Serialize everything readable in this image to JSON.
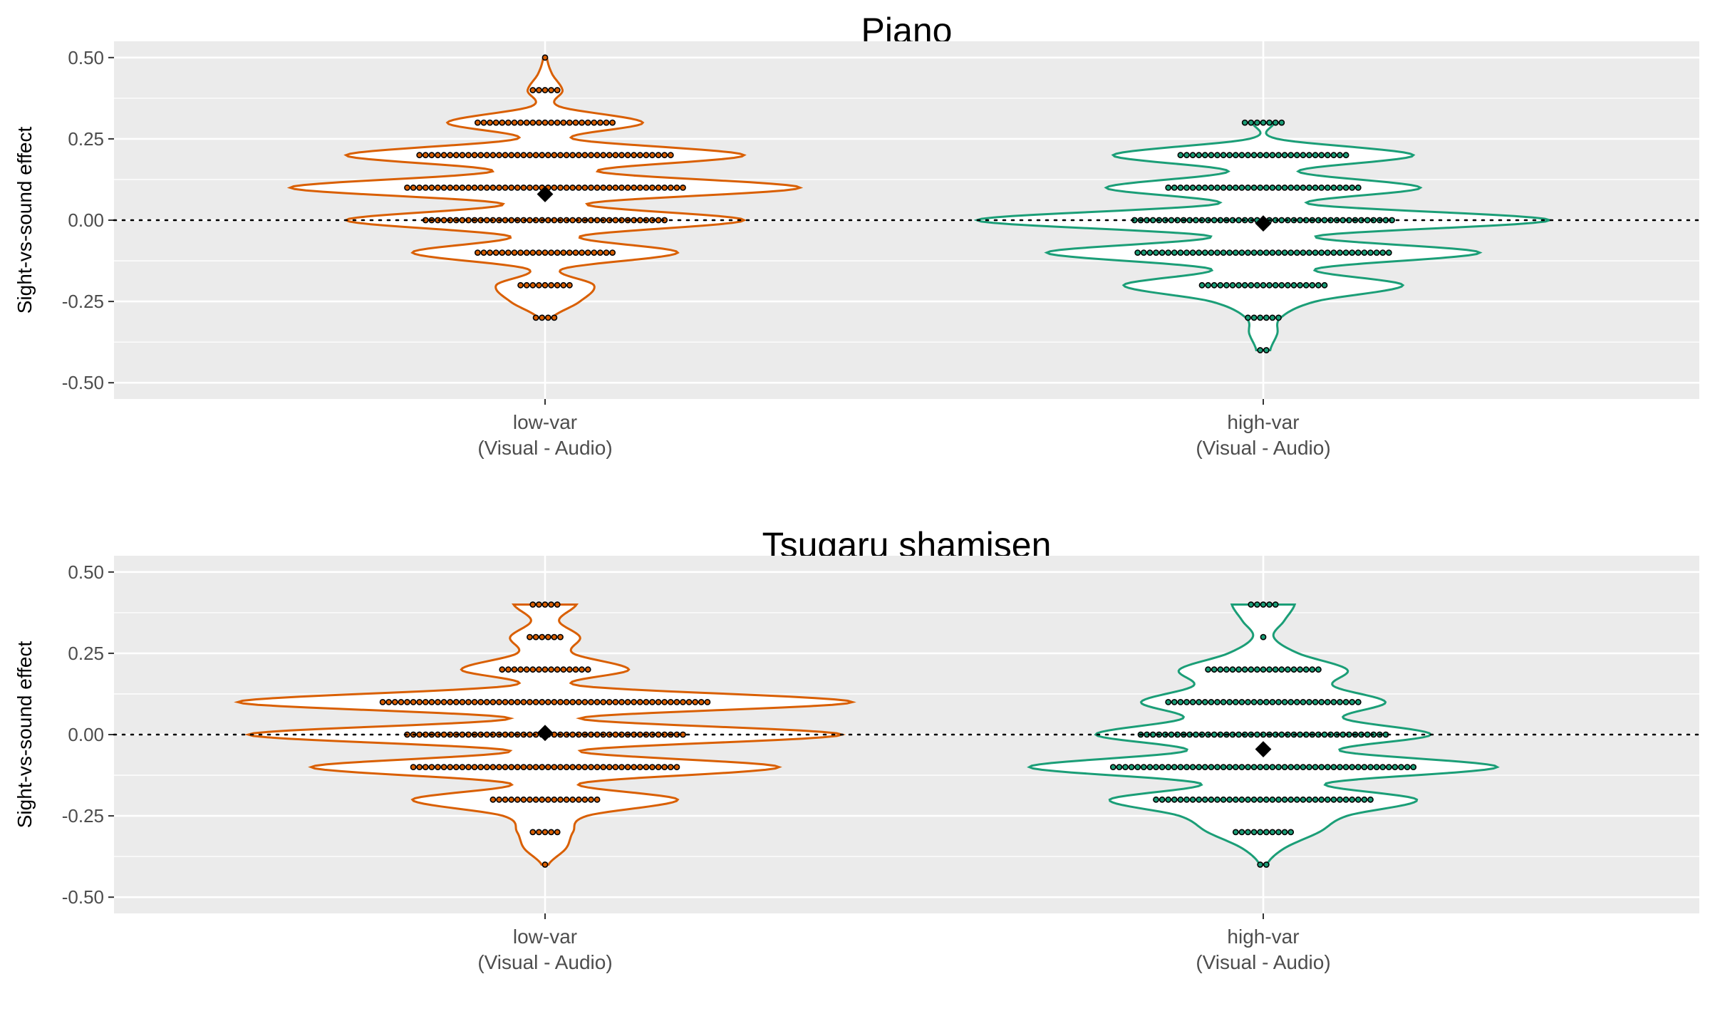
{
  "chart_data": [
    {
      "type": "violin",
      "title": "Piano",
      "ylabel": "Sight-vs-sound effect",
      "ylim": [
        -0.55,
        0.55
      ],
      "yticks": [
        "0.50",
        "0.25",
        "0.00",
        "-0.25",
        "-0.50"
      ],
      "ytick_values": [
        0.5,
        0.25,
        0.0,
        -0.25,
        -0.5
      ],
      "reference_line": 0.0,
      "categories": [
        {
          "label_line1": "low-var",
          "label_line2": "(Visual - Audio)"
        },
        {
          "label_line1": "high-var",
          "label_line2": "(Visual - Audio)"
        }
      ],
      "groups": [
        {
          "color": "#D95F02",
          "mean": 0.08,
          "range": [
            -0.3,
            0.5
          ],
          "density": [
            [
              -0.3,
              0.02
            ],
            [
              -0.25,
              0.1
            ],
            [
              -0.2,
              0.14
            ],
            [
              -0.15,
              0.05
            ],
            [
              -0.1,
              0.38
            ],
            [
              -0.05,
              0.1
            ],
            [
              0.0,
              0.57
            ],
            [
              0.05,
              0.12
            ],
            [
              0.1,
              0.73
            ],
            [
              0.15,
              0.15
            ],
            [
              0.2,
              0.57
            ],
            [
              0.25,
              0.08
            ],
            [
              0.3,
              0.28
            ],
            [
              0.35,
              0.04
            ],
            [
              0.4,
              0.05
            ],
            [
              0.45,
              0.02
            ],
            [
              0.5,
              0.005
            ]
          ],
          "dot_counts": [
            [
              -0.3,
              4
            ],
            [
              -0.2,
              9
            ],
            [
              -0.1,
              23
            ],
            [
              0.0,
              40
            ],
            [
              0.1,
              46
            ],
            [
              0.2,
              42
            ],
            [
              0.3,
              23
            ],
            [
              0.4,
              5
            ],
            [
              0.5,
              1
            ]
          ]
        },
        {
          "color": "#1B9E77",
          "mean": -0.01,
          "range": [
            -0.4,
            0.3
          ],
          "density": [
            [
              -0.4,
              0.02
            ],
            [
              -0.35,
              0.04
            ],
            [
              -0.3,
              0.05
            ],
            [
              -0.25,
              0.15
            ],
            [
              -0.2,
              0.4
            ],
            [
              -0.15,
              0.15
            ],
            [
              -0.1,
              0.62
            ],
            [
              -0.05,
              0.15
            ],
            [
              0.0,
              0.82
            ],
            [
              0.05,
              0.13
            ],
            [
              0.1,
              0.45
            ],
            [
              0.15,
              0.1
            ],
            [
              0.2,
              0.43
            ],
            [
              0.25,
              0.04
            ],
            [
              0.3,
              0.03
            ]
          ],
          "dot_counts": [
            [
              -0.4,
              2
            ],
            [
              -0.3,
              6
            ],
            [
              -0.2,
              21
            ],
            [
              -0.1,
              42
            ],
            [
              0.0,
              43
            ],
            [
              0.1,
              32
            ],
            [
              0.2,
              28
            ],
            [
              0.3,
              7
            ]
          ]
        }
      ]
    },
    {
      "type": "violin",
      "title": "Tsugaru shamisen",
      "ylabel": "Sight-vs-sound effect",
      "ylim": [
        -0.55,
        0.55
      ],
      "yticks": [
        "0.50",
        "0.25",
        "0.00",
        "-0.25",
        "-0.50"
      ],
      "ytick_values": [
        0.5,
        0.25,
        0.0,
        -0.25,
        -0.5
      ],
      "reference_line": 0.0,
      "categories": [
        {
          "label_line1": "low-var",
          "label_line2": "(Visual - Audio)"
        },
        {
          "label_line1": "high-var",
          "label_line2": "(Visual - Audio)"
        }
      ],
      "groups": [
        {
          "color": "#D95F02",
          "mean": 0.005,
          "range": [
            -0.4,
            0.4
          ],
          "density": [
            [
              -0.4,
              0.01
            ],
            [
              -0.35,
              0.06
            ],
            [
              -0.3,
              0.08
            ],
            [
              -0.25,
              0.12
            ],
            [
              -0.2,
              0.38
            ],
            [
              -0.15,
              0.1
            ],
            [
              -0.1,
              0.67
            ],
            [
              -0.05,
              0.1
            ],
            [
              0.0,
              0.85
            ],
            [
              0.05,
              0.1
            ],
            [
              0.1,
              0.88
            ],
            [
              0.15,
              0.1
            ],
            [
              0.2,
              0.24
            ],
            [
              0.25,
              0.08
            ],
            [
              0.3,
              0.1
            ],
            [
              0.35,
              0.04
            ],
            [
              0.4,
              0.09
            ]
          ],
          "dot_counts": [
            [
              -0.4,
              1
            ],
            [
              -0.3,
              5
            ],
            [
              -0.2,
              18
            ],
            [
              -0.1,
              44
            ],
            [
              0.0,
              46
            ],
            [
              0.1,
              54
            ],
            [
              0.2,
              15
            ],
            [
              0.3,
              6
            ],
            [
              0.4,
              5
            ]
          ]
        },
        {
          "color": "#1B9E77",
          "mean": -0.045,
          "range": [
            -0.4,
            0.4
          ],
          "density": [
            [
              -0.4,
              0.01
            ],
            [
              -0.35,
              0.06
            ],
            [
              -0.3,
              0.16
            ],
            [
              -0.25,
              0.24
            ],
            [
              -0.2,
              0.44
            ],
            [
              -0.15,
              0.18
            ],
            [
              -0.1,
              0.67
            ],
            [
              -0.05,
              0.22
            ],
            [
              0.0,
              0.48
            ],
            [
              0.05,
              0.23
            ],
            [
              0.1,
              0.35
            ],
            [
              0.15,
              0.2
            ],
            [
              0.2,
              0.24
            ],
            [
              0.25,
              0.1
            ],
            [
              0.3,
              0.03
            ],
            [
              0.35,
              0.06
            ],
            [
              0.4,
              0.09
            ]
          ],
          "dot_counts": [
            [
              -0.4,
              2
            ],
            [
              -0.3,
              10
            ],
            [
              -0.2,
              36
            ],
            [
              -0.1,
              50
            ],
            [
              0.0,
              41
            ],
            [
              0.1,
              32
            ],
            [
              0.2,
              19
            ],
            [
              0.3,
              1
            ],
            [
              0.4,
              5
            ]
          ]
        }
      ]
    }
  ]
}
